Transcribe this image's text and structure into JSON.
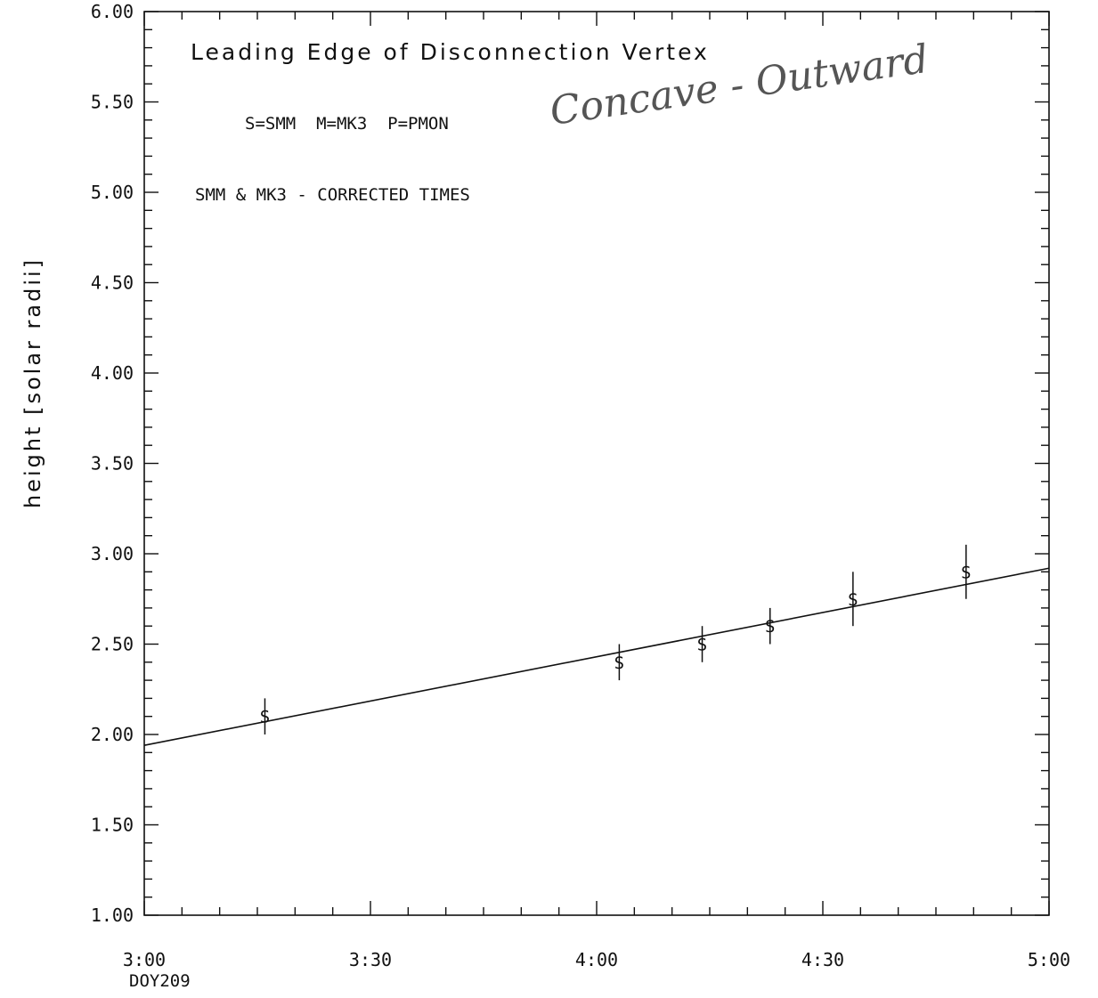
{
  "chart_data": {
    "type": "scatter",
    "title": "Leading Edge of Disconnection Vertex",
    "annotations": {
      "handwritten": "Concave - Outward",
      "legend_key": "S=SMM  M=MK3  P=PMON",
      "note": "SMM & MK3 - CORRECTED TIMES"
    },
    "ylabel": "height [solar radii]",
    "xlabel": "",
    "x_date_label": "DOY209",
    "xlim_minutes": [
      180,
      300
    ],
    "ylim": [
      1.0,
      6.0
    ],
    "x_ticks": [
      {
        "minutes": 180,
        "label": "3:00"
      },
      {
        "minutes": 210,
        "label": "3:30"
      },
      {
        "minutes": 240,
        "label": "4:00"
      },
      {
        "minutes": 270,
        "label": "4:30"
      },
      {
        "minutes": 300,
        "label": "5:00"
      }
    ],
    "y_ticks": [
      {
        "value": 1.0,
        "label": "1.00"
      },
      {
        "value": 1.5,
        "label": "1.50"
      },
      {
        "value": 2.0,
        "label": "2.00"
      },
      {
        "value": 2.5,
        "label": "2.50"
      },
      {
        "value": 3.0,
        "label": "3.00"
      },
      {
        "value": 3.5,
        "label": "3.50"
      },
      {
        "value": 4.0,
        "label": "4.00"
      },
      {
        "value": 4.5,
        "label": "4.50"
      },
      {
        "value": 5.0,
        "label": "5.00"
      },
      {
        "value": 5.5,
        "label": "5.50"
      },
      {
        "value": 6.0,
        "label": "6.00"
      }
    ],
    "series": [
      {
        "marker": "S",
        "points": [
          {
            "time": "3:16",
            "y": 2.1,
            "err": 0.1
          },
          {
            "time": "4:03",
            "y": 2.4,
            "err": 0.1
          },
          {
            "time": "4:14",
            "y": 2.5,
            "err": 0.1
          },
          {
            "time": "4:23",
            "y": 2.6,
            "err": 0.1
          },
          {
            "time": "4:34",
            "y": 2.75,
            "err": 0.15
          },
          {
            "time": "4:49",
            "y": 2.9,
            "err": 0.15
          }
        ]
      }
    ],
    "fit_line": {
      "start": {
        "time": "3:00",
        "y": 1.94
      },
      "end": {
        "time": "5:00",
        "y": 2.92
      }
    },
    "grid": false
  }
}
